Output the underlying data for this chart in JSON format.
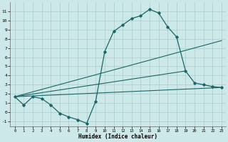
{
  "xlabel": "Humidex (Indice chaleur)",
  "background_color": "#cce8e8",
  "grid_color": "#b0d0d0",
  "line_color": "#1a6666",
  "xlim": [
    -0.5,
    23.5
  ],
  "ylim": [
    -1.5,
    12.0
  ],
  "xticks": [
    0,
    1,
    2,
    3,
    4,
    5,
    6,
    7,
    8,
    9,
    10,
    11,
    12,
    13,
    14,
    15,
    16,
    17,
    18,
    19,
    20,
    21,
    22,
    23
  ],
  "yticks": [
    -1,
    0,
    1,
    2,
    3,
    4,
    5,
    6,
    7,
    8,
    9,
    10,
    11
  ],
  "main_x": [
    0,
    1,
    2,
    3,
    4,
    5,
    6,
    7,
    8,
    9,
    10,
    11,
    12,
    13,
    14,
    15,
    16,
    17,
    18,
    19,
    20,
    21,
    22,
    23
  ],
  "main_y": [
    1.7,
    0.8,
    1.7,
    1.5,
    0.8,
    -0.1,
    -0.5,
    -0.8,
    -1.2,
    1.2,
    6.6,
    8.8,
    9.5,
    10.2,
    10.5,
    11.2,
    10.8,
    9.3,
    8.2,
    4.5,
    3.2,
    3.0,
    2.8,
    2.7
  ],
  "straight_lines": [
    {
      "x": [
        0,
        23
      ],
      "y": [
        1.7,
        2.7
      ]
    },
    {
      "x": [
        0,
        23
      ],
      "y": [
        1.7,
        7.8
      ]
    },
    {
      "x": [
        0,
        19
      ],
      "y": [
        1.7,
        4.5
      ]
    }
  ]
}
